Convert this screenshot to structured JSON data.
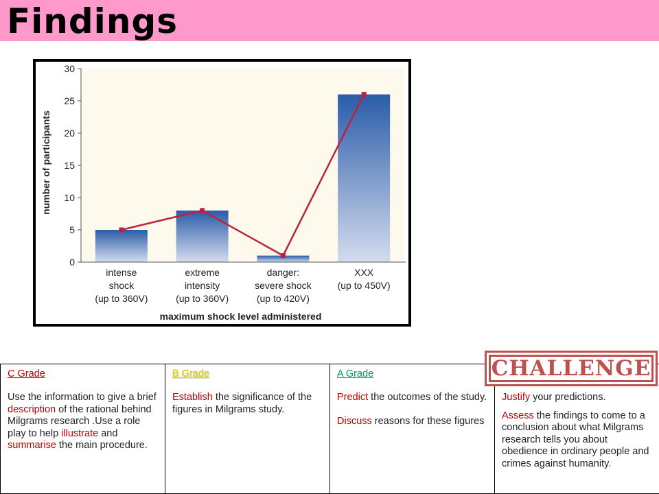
{
  "header": {
    "title": "Findings"
  },
  "chart_data": {
    "type": "bar",
    "categories": [
      [
        "intense",
        "shock",
        "(up to 360V)"
      ],
      [
        "extreme",
        "intensity",
        "(up to 360V)"
      ],
      [
        "danger:",
        "severe shock",
        "(up to 420V)"
      ],
      [
        "XXX",
        "(up to 450V)"
      ]
    ],
    "values": [
      5,
      8,
      1,
      26
    ],
    "line_overlay": true,
    "xlabel": "maximum shock level administered",
    "ylabel": "number of participants",
    "ylim": [
      0,
      30
    ],
    "yticks": [
      0,
      5,
      10,
      15,
      20,
      25,
      30
    ],
    "grid": false,
    "colors": {
      "bar_top": "#2a5ca8",
      "bar_bottom": "#d4dcee",
      "line": "#c0203a",
      "plot_bg": "#fdf9ec"
    }
  },
  "grades": {
    "c": {
      "head": "C Grade",
      "parts": [
        "Use the information to give a brief ",
        "description",
        "  of the rational behind Milgrams research .Use a role play to help ",
        "illustrate",
        " and ",
        "summarise",
        " the main procedure."
      ]
    },
    "b": {
      "head": "B Grade",
      "parts": [
        "Establish",
        " the significance of the figures in Milgrams study."
      ]
    },
    "a": {
      "head": "A Grade",
      "p1": [
        "Predict",
        " the outcomes of the study."
      ],
      "p2": [
        "Discuss",
        " reasons for these figures"
      ]
    },
    "challenge": {
      "logo": "CHALLENGE",
      "p1": [
        "Justify",
        " your predictions."
      ],
      "p2": [
        "Assess",
        " the findings to come to a conclusion about what Milgrams research tells you about obedience in ordinary people and crimes against humanity."
      ]
    }
  }
}
